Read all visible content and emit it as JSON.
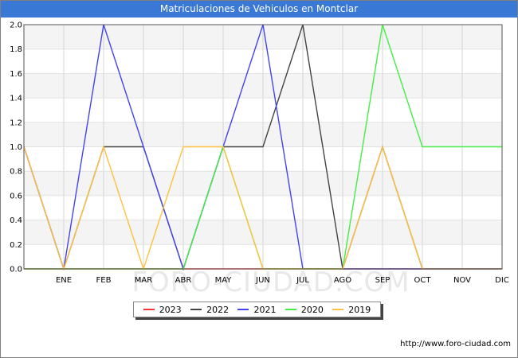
{
  "header": {
    "title": "Matriculaciones de Vehiculos en Montclar"
  },
  "footer": {
    "url": "http://www.foro-ciudad.com",
    "watermark": "FORO-CIUDAD.COM"
  },
  "chart_data": {
    "type": "line",
    "title": "Matriculaciones de Vehiculos en Montclar",
    "categories": [
      "",
      "ENE",
      "FEB",
      "MAR",
      "ABR",
      "MAY",
      "JUN",
      "JUL",
      "AGO",
      "SEP",
      "OCT",
      "NOV",
      "DIC"
    ],
    "ylim": [
      0,
      2
    ],
    "yticks": [
      "0.0",
      "0.2",
      "0.4",
      "0.6",
      "0.8",
      "1.0",
      "1.2",
      "1.4",
      "1.6",
      "1.8",
      "2.0"
    ],
    "grid": true,
    "legend_position": "bottom-center",
    "series": [
      {
        "name": "2023",
        "color": "#ff3333",
        "values": [
          0,
          0,
          0,
          0,
          0,
          0,
          0,
          0,
          0,
          0,
          0,
          0,
          0
        ]
      },
      {
        "name": "2022",
        "color": "#444444",
        "values": [
          1,
          0,
          1,
          1,
          0,
          1,
          1,
          2,
          0,
          1,
          0,
          0,
          0
        ]
      },
      {
        "name": "2021",
        "color": "#4444ee",
        "values": [
          1,
          0,
          2,
          1,
          0,
          1,
          2,
          0,
          0,
          0,
          0,
          0,
          0
        ]
      },
      {
        "name": "2020",
        "color": "#44ee44",
        "values": [
          0,
          0,
          0,
          0,
          0,
          1,
          0,
          0,
          0,
          2,
          1,
          1,
          1
        ]
      },
      {
        "name": "2019",
        "color": "#ffc040",
        "values": [
          1,
          0,
          1,
          0,
          1,
          1,
          0,
          0,
          0,
          1,
          0,
          0,
          0
        ]
      }
    ]
  }
}
